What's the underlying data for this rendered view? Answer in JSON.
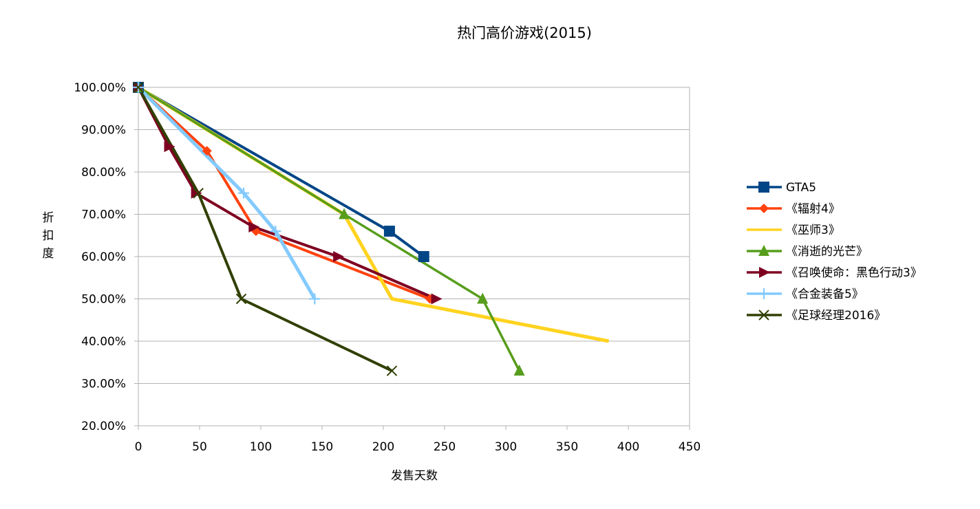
{
  "chart_data": {
    "type": "line",
    "title": "热门高价游戏(2015)",
    "xlabel": "发售天数",
    "ylabel": "折扣度",
    "xlim": [
      0,
      450
    ],
    "ylim": [
      0.2,
      1.0
    ],
    "x_ticks": [
      0,
      50,
      100,
      150,
      200,
      250,
      300,
      350,
      400,
      450
    ],
    "y_ticks": [
      0.2,
      0.3,
      0.4,
      0.5,
      0.6,
      0.7,
      0.8,
      0.9,
      1.0
    ],
    "x_tick_labels": [
      "0",
      "50",
      "100",
      "150",
      "200",
      "250",
      "300",
      "350",
      "400",
      "450"
    ],
    "y_tick_labels": [
      "20.00%",
      "30.00%",
      "40.00%",
      "50.00%",
      "60.00%",
      "70.00%",
      "80.00%",
      "90.00%",
      "100.00%"
    ],
    "grid": "horizontal",
    "legend_position": "right",
    "series": [
      {
        "name": "GTA5",
        "color": "#004586",
        "marker": "square",
        "points": [
          [
            0,
            1.0
          ],
          [
            205,
            0.66
          ],
          [
            233,
            0.6
          ]
        ]
      },
      {
        "name": "《辐射4》",
        "color": "#ff420e",
        "marker": "diamond",
        "points": [
          [
            0,
            1.0
          ],
          [
            56,
            0.85
          ],
          [
            96,
            0.66
          ],
          [
            238,
            0.5
          ]
        ]
      },
      {
        "name": "《巫师3》",
        "color": "#ffd320",
        "marker": "none",
        "points": [
          [
            0,
            1.0
          ],
          [
            168,
            0.7
          ],
          [
            207,
            0.5
          ],
          [
            384,
            0.4
          ]
        ]
      },
      {
        "name": "《消逝的光芒》",
        "color": "#579d1c",
        "marker": "triangle-up",
        "points": [
          [
            0,
            1.0
          ],
          [
            168,
            0.7
          ],
          [
            281,
            0.5
          ],
          [
            311,
            0.33
          ]
        ]
      },
      {
        "name": "《召唤使命：黑色行动3》",
        "color": "#7e0021",
        "marker": "triangle-right",
        "points": [
          [
            0,
            1.0
          ],
          [
            25,
            0.86
          ],
          [
            47,
            0.75
          ],
          [
            94,
            0.67
          ],
          [
            163,
            0.6
          ],
          [
            243,
            0.5
          ]
        ]
      },
      {
        "name": "《合金装备5》",
        "color": "#83caff",
        "marker": "plus",
        "points": [
          [
            0,
            1.0
          ],
          [
            86,
            0.75
          ],
          [
            112,
            0.66
          ],
          [
            144,
            0.5
          ]
        ]
      },
      {
        "name": "《足球经理2016》",
        "color": "#314004",
        "marker": "x",
        "points": [
          [
            0,
            1.0
          ],
          [
            49,
            0.75
          ],
          [
            84,
            0.5
          ],
          [
            207,
            0.33
          ]
        ]
      }
    ]
  }
}
